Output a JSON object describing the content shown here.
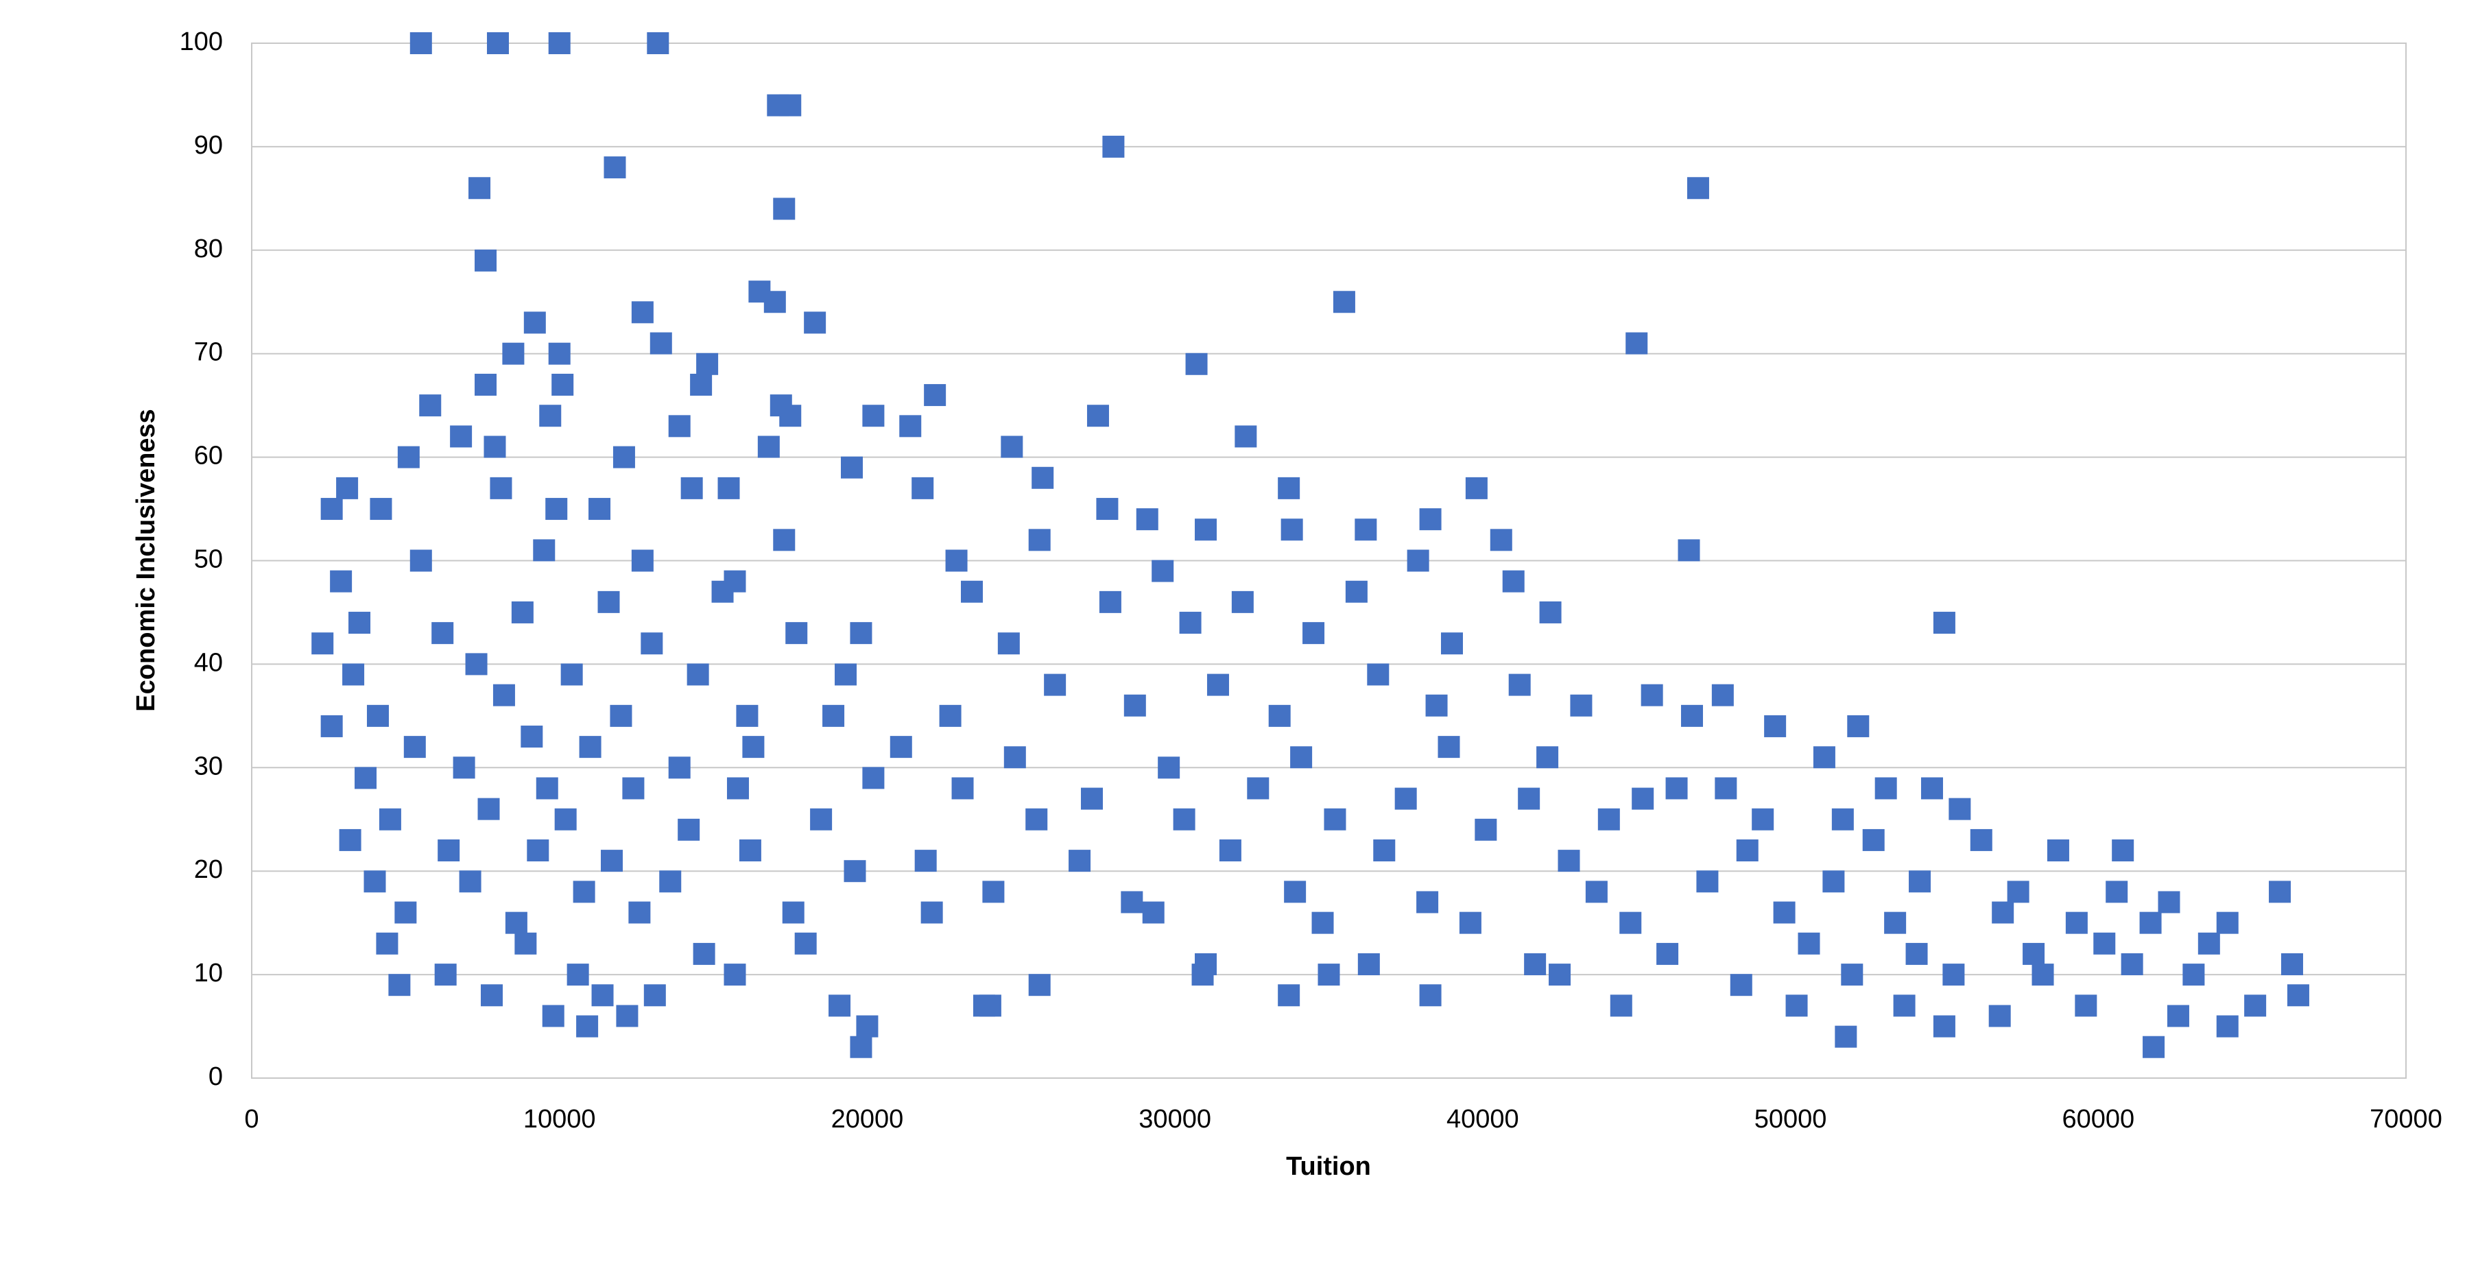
{
  "chart_data": {
    "type": "scatter",
    "xlabel": "Tuition",
    "ylabel": "Economic Inclusiveness",
    "xlim": [
      0,
      70000
    ],
    "xticks": [
      0,
      10000,
      20000,
      30000,
      40000,
      50000,
      60000,
      70000
    ],
    "ylim": [
      0,
      100
    ],
    "yticks": [
      0,
      10,
      20,
      30,
      40,
      50,
      60,
      70,
      80,
      90,
      100
    ],
    "grid": true,
    "marker": "square",
    "color": "#4472c4",
    "x": [
      5500,
      8000,
      10000,
      13200,
      17100,
      17500,
      28000,
      47000,
      7400,
      11800,
      7600,
      17300,
      35500,
      16500,
      17000,
      12700,
      9200,
      18300,
      45000,
      13300,
      8500,
      10000,
      30700,
      14800,
      14600,
      7600,
      10100,
      22200,
      5800,
      17200,
      20200,
      27500,
      9700,
      17500,
      13900,
      21400,
      6800,
      32300,
      7900,
      24700,
      5100,
      12100,
      16800,
      8100,
      3100,
      14300,
      15500,
      21800,
      33700,
      39800,
      2600,
      4200,
      9900,
      11300,
      19500,
      25700,
      27800,
      29100,
      36200,
      38300,
      40600,
      46700,
      31000,
      5500,
      12700,
      17300,
      22900,
      25600,
      29600,
      33800,
      2900,
      9500,
      15700,
      35900,
      37900,
      41000,
      3500,
      8800,
      11600,
      15300,
      23400,
      27900,
      32200,
      42200,
      55000,
      2300,
      6200,
      13000,
      17700,
      19800,
      24600,
      30500,
      34500,
      39000,
      3300,
      7300,
      10400,
      14500,
      19300,
      26100,
      31400,
      36600,
      41200,
      43200,
      47800,
      4100,
      8200,
      12000,
      16100,
      18900,
      22700,
      28700,
      33400,
      38500,
      45500,
      46800,
      49500,
      2600,
      5300,
      9100,
      11000,
      13900,
      16300,
      21100,
      24800,
      29800,
      34100,
      38900,
      42100,
      46300,
      51100,
      52200,
      3700,
      6900,
      9600,
      12400,
      15800,
      20200,
      23100,
      27300,
      32700,
      37500,
      41500,
      45200,
      47900,
      53100,
      54600,
      4500,
      7700,
      10200,
      14200,
      18500,
      25500,
      30300,
      35200,
      40100,
      44100,
      49100,
      51700,
      55500,
      3200,
      6400,
      9300,
      11700,
      16200,
      21900,
      26900,
      31800,
      36800,
      42800,
      48600,
      52700,
      56200,
      58700,
      60800,
      4000,
      7100,
      10800,
      13600,
      19600,
      24100,
      28600,
      33900,
      38200,
      43700,
      47300,
      51400,
      54200,
      57400,
      60600,
      62300,
      65900,
      5000,
      8600,
      12600,
      17600,
      22100,
      29300,
      34800,
      39600,
      44800,
      49800,
      53400,
      56900,
      59300,
      61700,
      64200,
      4400,
      8900,
      14700,
      18000,
      31000,
      36300,
      41700,
      46000,
      50600,
      54100,
      57900,
      60200,
      63600,
      6300,
      10600,
      15700,
      30900,
      35000,
      42500,
      48400,
      52000,
      55300,
      58200,
      61100,
      63100,
      66300,
      4800,
      7800,
      11400,
      13100,
      19100,
      23800,
      33700,
      38300,
      44500,
      50200,
      53700,
      56800,
      59600,
      62600,
      65100,
      66500,
      10900,
      19800,
      20000,
      51800,
      55000,
      61800,
      64200,
      24000,
      25600,
      12200,
      9800
    ],
    "values": [
      100,
      100,
      100,
      100,
      94,
      94,
      90,
      86,
      86,
      88,
      79,
      84,
      75,
      76,
      75,
      74,
      73,
      73,
      71,
      71,
      70,
      70,
      69,
      69,
      67,
      67,
      67,
      66,
      65,
      65,
      64,
      64,
      64,
      64,
      63,
      63,
      62,
      62,
      61,
      61,
      60,
      60,
      61,
      57,
      57,
      57,
      57,
      57,
      57,
      57,
      55,
      55,
      55,
      55,
      59,
      58,
      55,
      54,
      53,
      54,
      52,
      51,
      53,
      50,
      50,
      52,
      50,
      52,
      49,
      53,
      48,
      51,
      48,
      47,
      50,
      48,
      44,
      45,
      46,
      47,
      47,
      46,
      46,
      45,
      44,
      42,
      43,
      42,
      43,
      43,
      42,
      44,
      43,
      42,
      39,
      40,
      39,
      39,
      39,
      38,
      38,
      39,
      38,
      36,
      37,
      35,
      37,
      35,
      35,
      35,
      35,
      36,
      35,
      36,
      37,
      35,
      34,
      34,
      32,
      33,
      32,
      30,
      32,
      32,
      31,
      30,
      31,
      32,
      31,
      28,
      31,
      34,
      29,
      30,
      28,
      28,
      28,
      29,
      28,
      27,
      28,
      27,
      27,
      27,
      28,
      28,
      28,
      25,
      26,
      25,
      24,
      25,
      25,
      25,
      25,
      24,
      25,
      25,
      25,
      26,
      23,
      22,
      22,
      21,
      22,
      21,
      21,
      22,
      22,
      21,
      22,
      23,
      23,
      22,
      22,
      19,
      19,
      18,
      19,
      20,
      18,
      17,
      18,
      17,
      18,
      19,
      19,
      19,
      18,
      18,
      17,
      18,
      16,
      15,
      16,
      16,
      16,
      16,
      15,
      15,
      15,
      16,
      15,
      16,
      15,
      15,
      15,
      13,
      13,
      12,
      13,
      11,
      11,
      11,
      12,
      13,
      12,
      12,
      13,
      13,
      10,
      10,
      10,
      10,
      10,
      10,
      9,
      10,
      10,
      10,
      11,
      10,
      11,
      9,
      8,
      8,
      8,
      7,
      7,
      8,
      8,
      7,
      7,
      7,
      6,
      7,
      6,
      7,
      8,
      5,
      3,
      5,
      4,
      5,
      3,
      5,
      7,
      9,
      6,
      6
    ]
  }
}
